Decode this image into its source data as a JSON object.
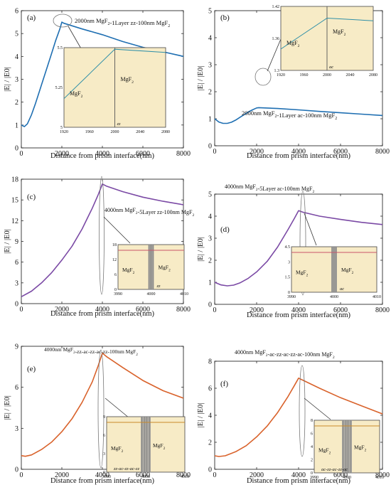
{
  "figure": {
    "xlabel": "Distance from prism interface(nm)",
    "ylabel": "|E| / |E0|",
    "material": "MgF",
    "material_sub": "2"
  },
  "chart_data": [
    {
      "panel": "(a)",
      "type": "line",
      "color": "#1f6fb2",
      "annotation": "2000nm MgF2-1Layer zz-100nm MgF2",
      "xlim": [
        0,
        8000
      ],
      "ylim": [
        0,
        6
      ],
      "xticks": [
        0,
        2000,
        4000,
        6000,
        8000
      ],
      "yticks": [
        0,
        1,
        2,
        3,
        4,
        5,
        6
      ],
      "x": [
        0,
        150,
        300,
        500,
        700,
        900,
        1100,
        1300,
        1500,
        1700,
        1900,
        2000,
        2100,
        3000,
        4000,
        5000,
        6000,
        7000,
        8000
      ],
      "y": [
        1.0,
        0.93,
        1.05,
        1.45,
        1.95,
        2.5,
        3.05,
        3.6,
        4.15,
        4.7,
        5.2,
        5.5,
        5.45,
        5.2,
        4.95,
        4.65,
        4.4,
        4.2,
        4.0
      ],
      "inset": {
        "xlim": [
          1920,
          2080
        ],
        "xticks": [
          1920,
          1960,
          2000,
          2040,
          2080
        ],
        "yticks": [
          "5",
          "5.25",
          "5.5"
        ],
        "interface_label": "zz",
        "x": [
          1920,
          2000,
          2000,
          2080
        ],
        "y": [
          5.18,
          5.49,
          5.49,
          5.47
        ]
      }
    },
    {
      "panel": "(b)",
      "type": "line",
      "color": "#1f6fb2",
      "annotation": "2000nm MgF2-1Layer ac-100nm MgF2",
      "xlim": [
        0,
        8000
      ],
      "ylim": [
        0,
        5
      ],
      "xticks": [
        0,
        2000,
        4000,
        6000,
        8000
      ],
      "yticks": [
        0,
        1,
        2,
        3,
        4,
        5
      ],
      "x": [
        0,
        200,
        400,
        600,
        800,
        1000,
        1200,
        1400,
        1600,
        1800,
        2000,
        2100,
        3000,
        4000,
        5000,
        6000,
        7000,
        8000
      ],
      "y": [
        1.0,
        0.88,
        0.83,
        0.83,
        0.87,
        0.95,
        1.05,
        1.15,
        1.25,
        1.33,
        1.4,
        1.41,
        1.38,
        1.33,
        1.27,
        1.22,
        1.17,
        1.12
      ],
      "inset": {
        "xlim": [
          1920,
          2080
        ],
        "xticks": [
          1920,
          1960,
          2000,
          2040,
          2080
        ],
        "yticks": [
          "1.3",
          "1.36",
          "1.42"
        ],
        "interface_label": "ac",
        "x": [
          1920,
          2000,
          2000,
          2080
        ],
        "y": [
          1.34,
          1.398,
          1.398,
          1.393
        ]
      }
    },
    {
      "panel": "(c)",
      "type": "line",
      "color": "#7b4aa5",
      "annotation": "4000nm MgF2-5Layer zz-100nm MgF2",
      "xlim": [
        0,
        8000
      ],
      "ylim": [
        0,
        18
      ],
      "xticks": [
        0,
        2000,
        4000,
        6000,
        8000
      ],
      "yticks": [
        0,
        3,
        6,
        9,
        12,
        15,
        18
      ],
      "x": [
        0,
        500,
        1000,
        1500,
        2000,
        2500,
        3000,
        3500,
        3800,
        4000,
        4200,
        5000,
        6000,
        7000,
        8000
      ],
      "y": [
        1.0,
        1.8,
        3.0,
        4.5,
        6.3,
        8.3,
        10.8,
        13.8,
        15.8,
        17.3,
        17.0,
        16.2,
        15.4,
        14.8,
        14.3
      ],
      "inset": {
        "xlim": [
          3990,
          4010
        ],
        "xticks": [
          3990,
          4000,
          4010
        ],
        "yticks": [
          "0",
          "6",
          "12",
          "18"
        ],
        "interface_label": "zz",
        "x": [
          3990,
          4010
        ],
        "y": [
          17.3,
          17.3
        ]
      }
    },
    {
      "panel": "(d)",
      "type": "line",
      "color": "#7b4aa5",
      "annotation": "4000nm MgF2-5Layer ac-100nm MgF2",
      "xlim": [
        0,
        8000
      ],
      "ylim": [
        0,
        5
      ],
      "xticks": [
        0,
        2000,
        4000,
        6000,
        8000
      ],
      "yticks": [
        0,
        1,
        2,
        3,
        4,
        5
      ],
      "x": [
        0,
        300,
        600,
        900,
        1200,
        1600,
        2000,
        2500,
        3000,
        3500,
        3800,
        4000,
        4200,
        5000,
        6000,
        7000,
        8000
      ],
      "y": [
        1.0,
        0.88,
        0.84,
        0.87,
        0.97,
        1.18,
        1.47,
        1.95,
        2.6,
        3.4,
        3.9,
        4.25,
        4.18,
        4.0,
        3.85,
        3.72,
        3.62
      ],
      "inset": {
        "xlim": [
          3990,
          4010
        ],
        "xticks": [
          3990,
          4000,
          4010
        ],
        "yticks": [
          "0",
          "1.5",
          "3",
          "4.5"
        ],
        "interface_label": "ac",
        "x": [
          3990,
          4010
        ],
        "y": [
          4.25,
          4.25
        ]
      }
    },
    {
      "panel": "(e)",
      "type": "line",
      "color": "#d9622b",
      "annotation": "4000nm MgF2-zz-ac-zz-ac-zz-100nm MgF2",
      "xlim": [
        0,
        8000
      ],
      "ylim": [
        0,
        9
      ],
      "xticks": [
        0,
        2000,
        4000,
        6000,
        8000
      ],
      "yticks": [
        0,
        3,
        6,
        9
      ],
      "x": [
        0,
        200,
        500,
        1000,
        1500,
        2000,
        2500,
        3000,
        3500,
        3800,
        4000,
        4200,
        5000,
        6000,
        7000,
        8000
      ],
      "y": [
        1.0,
        0.95,
        1.05,
        1.45,
        2.0,
        2.75,
        3.7,
        4.9,
        6.4,
        7.6,
        8.5,
        8.25,
        7.45,
        6.5,
        5.75,
        5.2
      ],
      "inset": {
        "xlim": [
          3990,
          4010
        ],
        "xticks": [
          3990,
          4000,
          4010
        ],
        "yticks": [
          "0",
          "3",
          "6",
          "9"
        ],
        "interface_label": "zz-ac-zz-ac-zz",
        "x": [
          3990,
          4010
        ],
        "y": [
          8.5,
          8.5
        ]
      }
    },
    {
      "panel": "(f)",
      "type": "line",
      "color": "#d9622b",
      "annotation": "4000nm MgF2-ac-zz-ac-zz-ac-100nm MgF2",
      "xlim": [
        0,
        8000
      ],
      "ylim": [
        0,
        8
      ],
      "xticks": [
        0,
        2000,
        4000,
        6000,
        8000
      ],
      "yticks": [
        0,
        2,
        4,
        6,
        8
      ],
      "x": [
        0,
        200,
        500,
        1000,
        1500,
        2000,
        2500,
        3000,
        3500,
        3800,
        4000,
        4200,
        5000,
        6000,
        7000,
        8000
      ],
      "y": [
        1.0,
        0.95,
        1.0,
        1.3,
        1.75,
        2.4,
        3.2,
        4.2,
        5.4,
        6.2,
        6.75,
        6.6,
        6.0,
        5.3,
        4.7,
        4.1
      ],
      "inset": {
        "xlim": [
          3990,
          4010
        ],
        "xticks": [
          3990,
          4000,
          4010
        ],
        "yticks": [
          "0",
          "2",
          "4",
          "6",
          "8"
        ],
        "interface_label": "ac-zz-ac-zz-ac",
        "x": [
          3990,
          4010
        ],
        "y": [
          6.75,
          6.75
        ]
      }
    }
  ]
}
